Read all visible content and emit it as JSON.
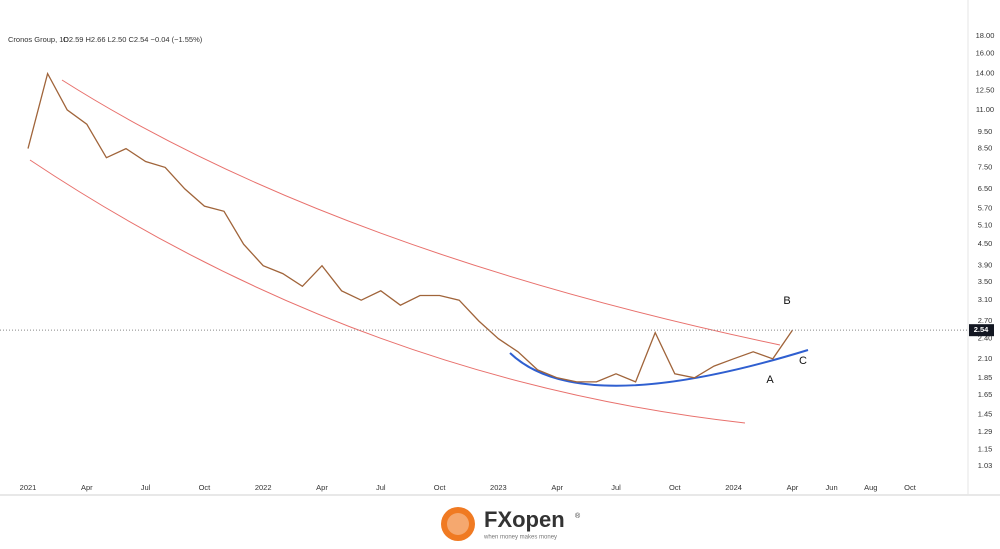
{
  "chart_data": {
    "type": "line",
    "title": "Cronos Group, 1D",
    "ohlc": "O2.59 H2.66 L2.50 C2.54 −0.04 (−1.55%)",
    "log_scale": true,
    "grid": false,
    "categories": [
      "2021",
      null,
      null,
      "Apr",
      null,
      null,
      "Jul",
      null,
      null,
      "Oct",
      null,
      null,
      "2022",
      null,
      null,
      "Apr",
      null,
      null,
      "Jul",
      null,
      null,
      "Oct",
      null,
      null,
      "2023",
      null,
      null,
      "Apr",
      null,
      null,
      "Jul",
      null,
      null,
      "Oct",
      null,
      null,
      "2024",
      null,
      null,
      "Apr",
      null,
      "Jun",
      null,
      "Aug",
      null,
      "Oct"
    ],
    "series": [
      {
        "name": "Cronos Group",
        "color": "#a0643a",
        "values": [
          8.5,
          14.0,
          11.0,
          10.0,
          8.0,
          8.5,
          7.8,
          7.5,
          6.5,
          5.8,
          5.6,
          4.5,
          3.9,
          3.7,
          3.4,
          3.9,
          3.3,
          3.1,
          3.3,
          3.0,
          3.2,
          3.2,
          3.1,
          2.7,
          2.4,
          2.2,
          1.95,
          1.85,
          1.8,
          1.8,
          1.9,
          1.8,
          2.5,
          1.9,
          1.85,
          2.0,
          2.1,
          2.2,
          2.1,
          2.54,
          null,
          null,
          null,
          null,
          null,
          null
        ]
      }
    ],
    "ylim": [
      0.95,
      22.1
    ],
    "yticks": [
      {
        "value": 1.03,
        "label": "1.03"
      },
      {
        "value": 1.15,
        "label": "1.15"
      },
      {
        "value": 1.29,
        "label": "1.29"
      },
      {
        "value": 1.45,
        "label": "1.45"
      },
      {
        "value": 1.65,
        "label": "1.65"
      },
      {
        "value": 1.85,
        "label": "1.85"
      },
      {
        "value": 2.1,
        "label": "2.10"
      },
      {
        "value": 2.4,
        "label": "2.40"
      },
      {
        "value": 2.7,
        "label": "2.70"
      },
      {
        "value": 3.1,
        "label": "3.10"
      },
      {
        "value": 3.5,
        "label": "3.50"
      },
      {
        "value": 3.9,
        "label": "3.90"
      },
      {
        "value": 4.5,
        "label": "4.50"
      },
      {
        "value": 5.1,
        "label": "5.10"
      },
      {
        "value": 5.7,
        "label": "5.70"
      },
      {
        "value": 6.5,
        "label": "6.50"
      },
      {
        "value": 7.5,
        "label": "7.50"
      },
      {
        "value": 8.5,
        "label": "8.50"
      },
      {
        "value": 9.5,
        "label": "9.50"
      },
      {
        "value": 11,
        "label": "11.00"
      },
      {
        "value": 12.5,
        "label": "12.50"
      },
      {
        "value": 14,
        "label": "14.00"
      },
      {
        "value": 16,
        "label": "16.00"
      },
      {
        "value": 18,
        "label": "18.00"
      }
    ],
    "last_price": 2.54,
    "annotations": [
      "A",
      "B",
      "C"
    ]
  },
  "brand": {
    "name": "FXopen",
    "registered": "®",
    "tagline": "when money makes money"
  }
}
